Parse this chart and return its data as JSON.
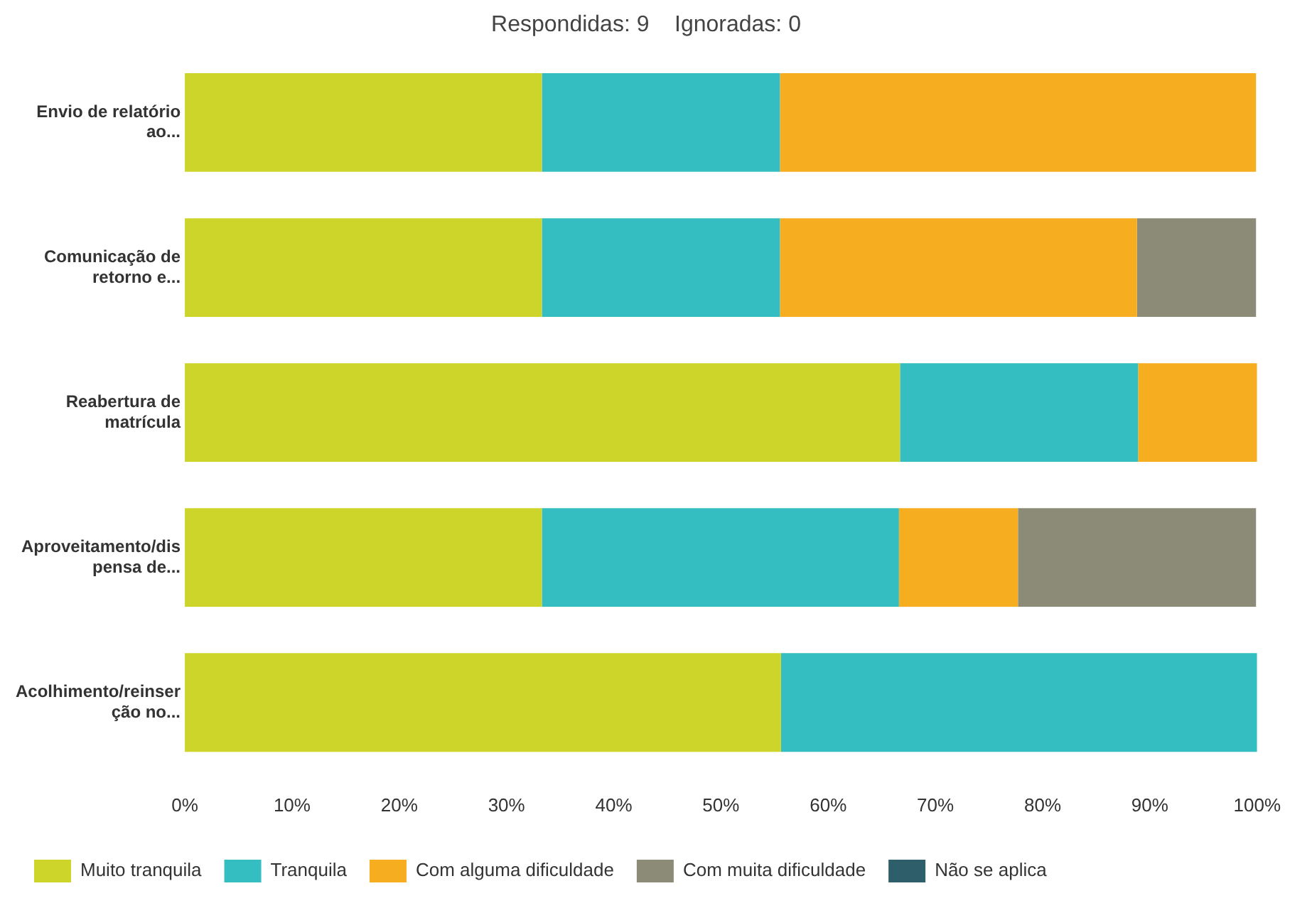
{
  "chart_data": {
    "type": "bar",
    "orientation": "horizontal",
    "stacked": true,
    "title": "Respondidas: 9    Ignoradas: 0",
    "categories": [
      "Envio de relatório ao...",
      "Comunicação de retorno e...",
      "Reabertura de matrícula",
      "Aproveitamento/dispensa de...",
      "Acolhimento/reinserção no..."
    ],
    "series": [
      {
        "name": "Muito tranquila",
        "color": "#cdd42a",
        "values": [
          33.3,
          33.3,
          66.7,
          33.3,
          55.6
        ]
      },
      {
        "name": "Tranquila",
        "color": "#35bec1",
        "values": [
          22.2,
          22.2,
          22.2,
          33.3,
          44.4
        ]
      },
      {
        "name": "Com alguma dificuldade",
        "color": "#f6ae20",
        "values": [
          44.4,
          33.3,
          11.1,
          11.1,
          0
        ]
      },
      {
        "name": "Com muita dificuldade",
        "color": "#8b8b78",
        "values": [
          0,
          11.1,
          0,
          22.2,
          0
        ]
      },
      {
        "name": "Não se aplica",
        "color": "#2f5e6b",
        "values": [
          0,
          0,
          0,
          0,
          0
        ]
      }
    ],
    "xlim": [
      0,
      100
    ],
    "xticks": [
      {
        "value": 0,
        "label": "0%"
      },
      {
        "value": 10,
        "label": "10%"
      },
      {
        "value": 20,
        "label": "20%"
      },
      {
        "value": 30,
        "label": "30%"
      },
      {
        "value": 40,
        "label": "40%"
      },
      {
        "value": 50,
        "label": "50%"
      },
      {
        "value": 60,
        "label": "60%"
      },
      {
        "value": 70,
        "label": "70%"
      },
      {
        "value": 80,
        "label": "80%"
      },
      {
        "value": 90,
        "label": "90%"
      },
      {
        "value": 100,
        "label": "100%"
      }
    ],
    "grid": false,
    "legend": "bottom"
  }
}
